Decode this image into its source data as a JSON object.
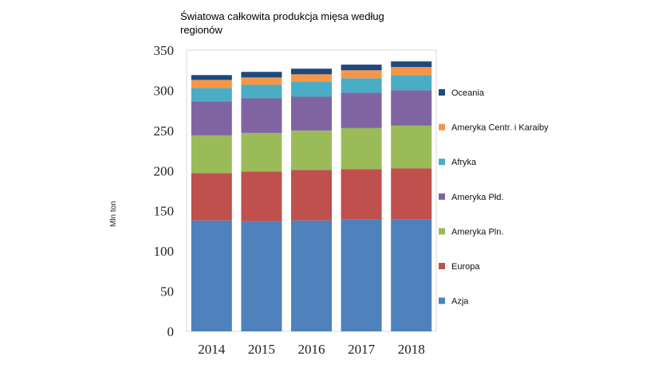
{
  "chart_data": {
    "type": "bar",
    "stacked": true,
    "title_lines": [
      "Światowa całkowita produkcja mięsa według",
      "regionów"
    ],
    "xlabel": "",
    "ylabel": "Mln ton",
    "ylim": [
      0,
      350
    ],
    "yticks": [
      0,
      50,
      100,
      150,
      200,
      250,
      300,
      350
    ],
    "grid": false,
    "legend_position": "right",
    "categories": [
      "2014",
      "2015",
      "2016",
      "2017",
      "2018"
    ],
    "series": [
      {
        "name": "Azja",
        "color": "#4f81bd",
        "values": [
          138,
          137,
          138,
          139,
          139
        ]
      },
      {
        "name": "Europa",
        "color": "#c0504d",
        "values": [
          59,
          62,
          63,
          63,
          64
        ]
      },
      {
        "name": "Ameryka Pln.",
        "color": "#9bbb59",
        "values": [
          47,
          48,
          49,
          51,
          53
        ]
      },
      {
        "name": "Ameryka Płd.",
        "color": "#8064a2",
        "values": [
          42,
          43,
          42,
          44,
          44
        ]
      },
      {
        "name": "Afryka",
        "color": "#4bacc6",
        "values": [
          17,
          17,
          19,
          18,
          19
        ]
      },
      {
        "name": "Ameryka Centr. i Karaiby",
        "color": "#f79646",
        "values": [
          10,
          9,
          9,
          10,
          10
        ]
      },
      {
        "name": "Oceania",
        "color": "#1f497d",
        "values": [
          6,
          7,
          7,
          7,
          7
        ]
      }
    ]
  }
}
